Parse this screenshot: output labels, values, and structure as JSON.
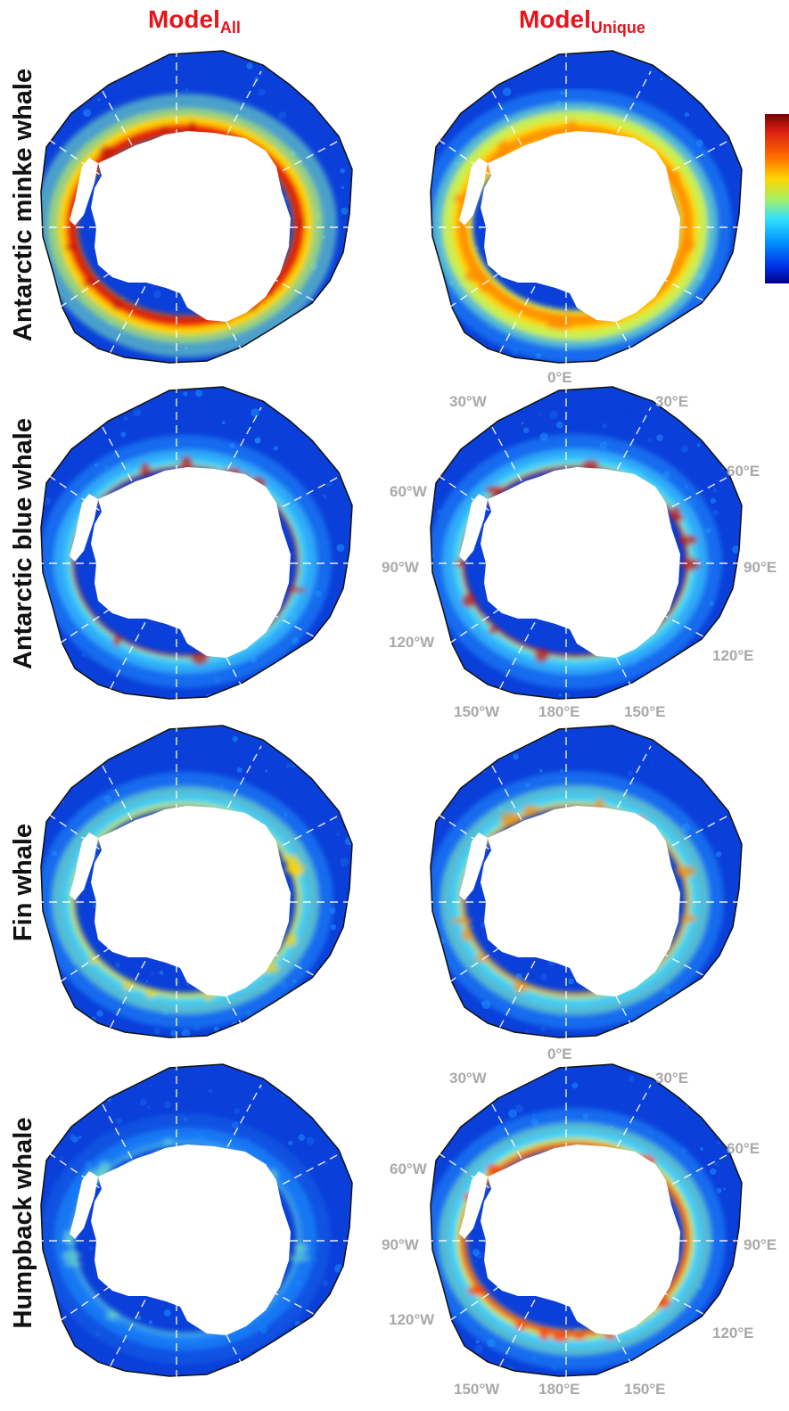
{
  "columns": [
    {
      "title_main": "Model",
      "title_sub": "All"
    },
    {
      "title_main": "Model",
      "title_sub": "Unique"
    }
  ],
  "rows": [
    {
      "label": "Antarctic minke whale"
    },
    {
      "label": "Antarctic blue whale"
    },
    {
      "label": "Fin whale"
    },
    {
      "label": "Humpback whale"
    }
  ],
  "coordinate_labels": {
    "top": "0°E",
    "upper_left": "30°W",
    "upper_right": "30°E",
    "mid_upper_left": "60°W",
    "mid_upper_right": "60°E",
    "left": "90°W",
    "right": "90°E",
    "lower_left": "120°W",
    "lower_right": "120°E",
    "bottom_left": "150°W",
    "bottom_center": "180°E",
    "bottom_right": "150°E"
  },
  "colors": {
    "title": "#e8141c",
    "ocean_low": "#0a3fd9",
    "hotspot_high": "#c8150d",
    "coord_label": "#a9a9a9"
  },
  "legend": {
    "type": "colorbar",
    "scale": "jet",
    "position": "right"
  }
}
